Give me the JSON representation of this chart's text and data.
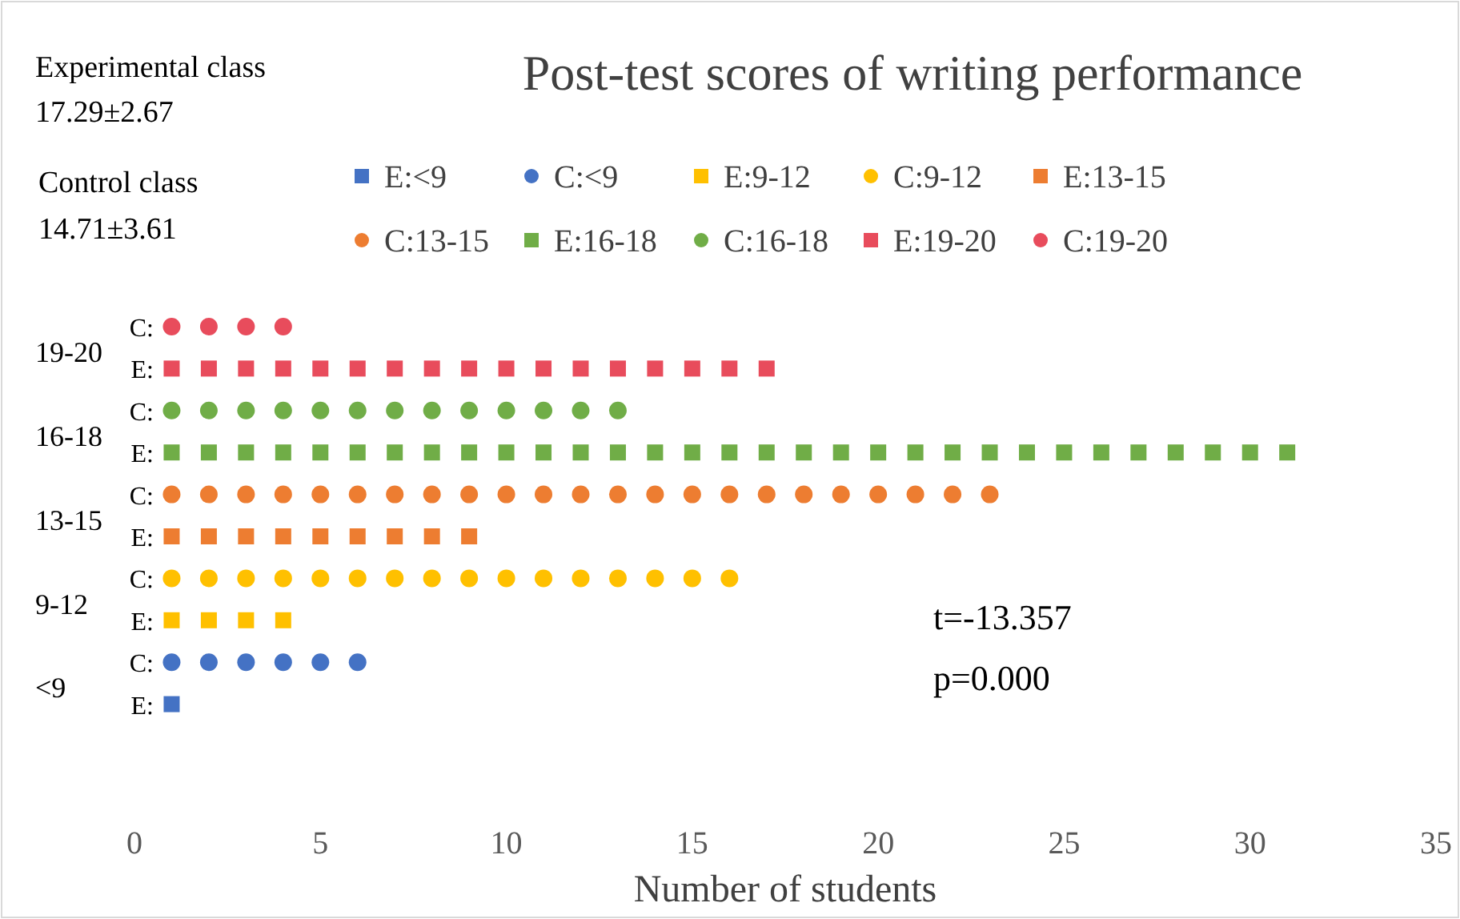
{
  "chart_data": {
    "type": "scatter",
    "orientation": "horizontal",
    "title": "Post-test scores of writing performance",
    "xlabel": "Number of students",
    "categories": [
      "19-20",
      "16-18",
      "13-15",
      "9-12",
      "<9"
    ],
    "y_categories": [
      "C:",
      "E:"
    ],
    "xlim": [
      0,
      35
    ],
    "xticks": [
      0,
      5,
      10,
      15,
      20,
      25,
      30,
      35
    ],
    "legend": "top",
    "annotations": [
      "Experimental class",
      "17.29±2.67",
      "Control class",
      "14.71±3.61",
      "t=-13.357",
      "p=0.000"
    ],
    "series": [
      {
        "name": "E:<9",
        "color": "#4472c4",
        "marker": "square",
        "x": [
          "<9"
        ],
        "values": [
          1
        ]
      },
      {
        "name": "C:<9",
        "color": "#4472c4",
        "marker": "circle",
        "x": [
          "<9",
          "<9",
          "<9",
          "<9",
          "<9",
          "<9"
        ],
        "values": [
          1,
          2,
          3,
          4,
          5,
          6
        ]
      },
      {
        "name": "E:9-12",
        "color": "#ffc000",
        "marker": "square",
        "x": [
          "9-12",
          "9-12",
          "9-12",
          "9-12"
        ],
        "values": [
          1,
          2,
          3,
          4
        ]
      },
      {
        "name": "C:9-12",
        "color": "#ffc000",
        "marker": "circle",
        "x": [
          "9-12",
          "9-12",
          "9-12",
          "9-12",
          "9-12",
          "9-12",
          "9-12",
          "9-12",
          "9-12",
          "9-12",
          "9-12",
          "9-12",
          "9-12",
          "9-12",
          "9-12",
          "9-12"
        ],
        "values": [
          1,
          2,
          3,
          4,
          5,
          6,
          7,
          8,
          9,
          10,
          11,
          12,
          13,
          14,
          15,
          16
        ]
      },
      {
        "name": "E:13-15",
        "color": "#ed7d31",
        "marker": "square",
        "x": [
          "13-15",
          "13-15",
          "13-15",
          "13-15",
          "13-15",
          "13-15",
          "13-15",
          "13-15",
          "13-15"
        ],
        "values": [
          1,
          2,
          3,
          4,
          5,
          6,
          7,
          8,
          9
        ]
      },
      {
        "name": "C:13-15",
        "color": "#ed7d31",
        "marker": "circle",
        "x": [
          "13-15",
          "13-15",
          "13-15",
          "13-15",
          "13-15",
          "13-15",
          "13-15",
          "13-15",
          "13-15",
          "13-15",
          "13-15",
          "13-15",
          "13-15",
          "13-15",
          "13-15",
          "13-15",
          "13-15",
          "13-15",
          "13-15",
          "13-15",
          "13-15",
          "13-15",
          "13-15"
        ],
        "values": [
          1,
          2,
          3,
          4,
          5,
          6,
          7,
          8,
          9,
          10,
          11,
          12,
          13,
          14,
          15,
          16,
          17,
          18,
          19,
          20,
          21,
          22,
          23
        ]
      },
      {
        "name": "E:16-18",
        "color": "#70ad47",
        "marker": "square",
        "x": [
          "16-18",
          "16-18",
          "16-18",
          "16-18",
          "16-18",
          "16-18",
          "16-18",
          "16-18",
          "16-18",
          "16-18",
          "16-18",
          "16-18",
          "16-18",
          "16-18",
          "16-18",
          "16-18",
          "16-18",
          "16-18",
          "16-18",
          "16-18",
          "16-18",
          "16-18",
          "16-18",
          "16-18",
          "16-18",
          "16-18",
          "16-18",
          "16-18",
          "16-18",
          "16-18",
          "16-18"
        ],
        "values": [
          1,
          2,
          3,
          4,
          5,
          6,
          7,
          8,
          9,
          10,
          11,
          12,
          13,
          14,
          15,
          16,
          17,
          18,
          19,
          20,
          21,
          22,
          23,
          24,
          25,
          26,
          27,
          28,
          29,
          30,
          31
        ]
      },
      {
        "name": "C:16-18",
        "color": "#70ad47",
        "marker": "circle",
        "x": [
          "16-18",
          "16-18",
          "16-18",
          "16-18",
          "16-18",
          "16-18",
          "16-18",
          "16-18",
          "16-18",
          "16-18",
          "16-18",
          "16-18",
          "16-18"
        ],
        "values": [
          1,
          2,
          3,
          4,
          5,
          6,
          7,
          8,
          9,
          10,
          11,
          12,
          13
        ]
      },
      {
        "name": "E:19-20",
        "color": "#e84c5c",
        "marker": "square",
        "x": [
          "19-20",
          "19-20",
          "19-20",
          "19-20",
          "19-20",
          "19-20",
          "19-20",
          "19-20",
          "19-20",
          "19-20",
          "19-20",
          "19-20",
          "19-20",
          "19-20",
          "19-20",
          "19-20",
          "19-20"
        ],
        "values": [
          1,
          2,
          3,
          4,
          5,
          6,
          7,
          8,
          9,
          10,
          11,
          12,
          13,
          14,
          15,
          16,
          17
        ]
      },
      {
        "name": "C:19-20",
        "color": "#e84c5c",
        "marker": "circle",
        "x": [
          "19-20",
          "19-20",
          "19-20",
          "19-20"
        ],
        "values": [
          1,
          2,
          3,
          4
        ]
      }
    ]
  }
}
